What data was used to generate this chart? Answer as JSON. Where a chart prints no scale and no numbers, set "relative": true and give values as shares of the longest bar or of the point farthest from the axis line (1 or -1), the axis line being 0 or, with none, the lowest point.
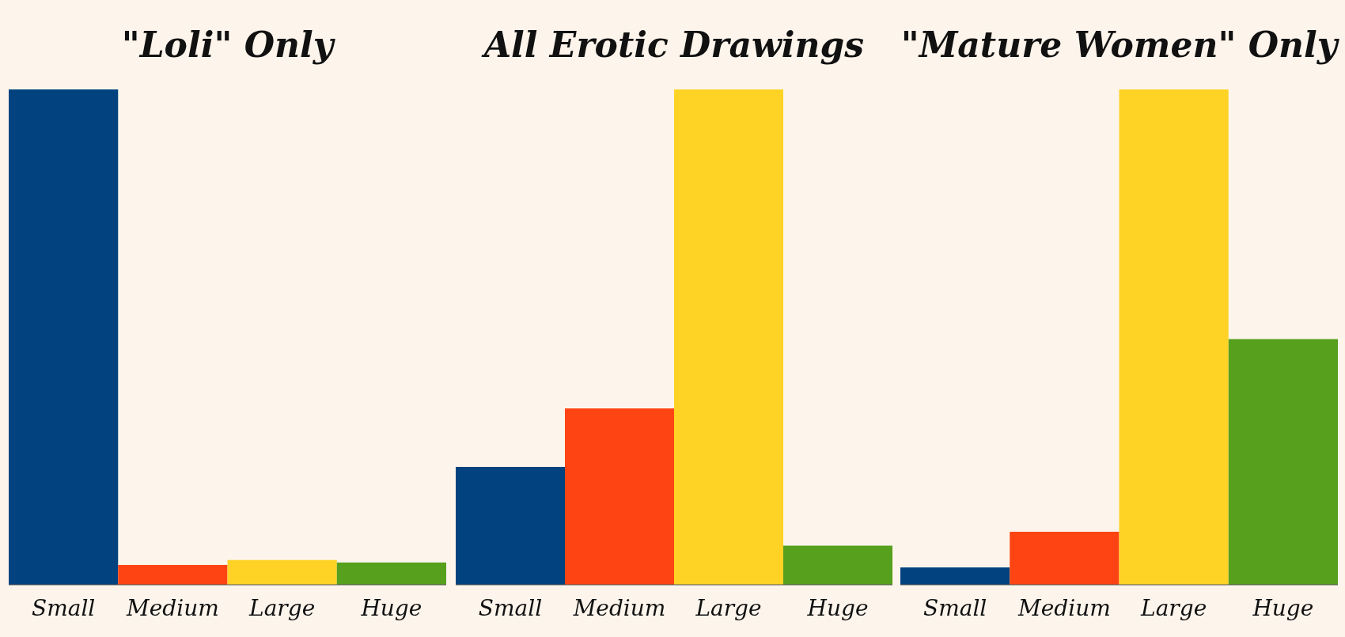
{
  "chart_data": [
    {
      "type": "bar",
      "title": "\"Loli\" Only",
      "relative": true,
      "categories": [
        "Small",
        "Medium",
        "Large",
        "Huge"
      ],
      "colors": [
        "#02437f",
        "#fe4412",
        "#fed325",
        "#57a01e"
      ],
      "values": [
        1,
        0.04,
        0.05,
        0.045
      ]
    },
    {
      "type": "bar",
      "title": "All Erotic Drawings",
      "relative": true,
      "categories": [
        "Small",
        "Medium",
        "Large",
        "Huge"
      ],
      "colors": [
        "#02437f",
        "#fe4412",
        "#fed325",
        "#57a01e"
      ],
      "values": [
        0.238,
        0.356,
        1,
        0.079
      ]
    },
    {
      "type": "bar",
      "title": "\"Mature Women\" Only",
      "relative": true,
      "categories": [
        "Small",
        "Medium",
        "Large",
        "Huge"
      ],
      "colors": [
        "#02437f",
        "#fe4412",
        "#fed325",
        "#57a01e"
      ],
      "values": [
        0.035,
        0.107,
        1,
        0.496
      ]
    }
  ]
}
